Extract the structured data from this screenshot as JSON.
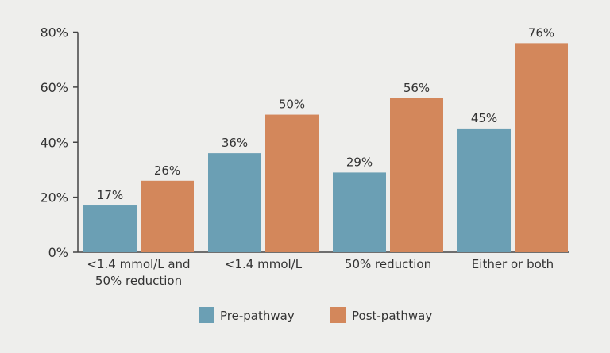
{
  "chart_data": {
    "type": "bar",
    "title": "",
    "xlabel": "",
    "ylabel": "",
    "ylim": [
      0,
      80
    ],
    "yticks": [
      "0%",
      "20%",
      "40%",
      "60%",
      "80%"
    ],
    "ytick_values": [
      0,
      20,
      40,
      60,
      80
    ],
    "grid": false,
    "legend_position": "bottom",
    "categories": [
      [
        "<1.4 mmol/L and",
        "50% reduction"
      ],
      [
        "<1.4 mmol/L"
      ],
      [
        "50% reduction"
      ],
      [
        "Either or both"
      ]
    ],
    "series": [
      {
        "name": "Pre-pathway",
        "color": "#6b9fb4",
        "values": [
          17,
          36,
          29,
          45
        ],
        "labels": [
          "17%",
          "36%",
          "29%",
          "45%"
        ]
      },
      {
        "name": "Post-pathway",
        "color": "#d3875b",
        "values": [
          26,
          50,
          56,
          76
        ],
        "labels": [
          "26%",
          "50%",
          "56%",
          "76%"
        ]
      }
    ]
  }
}
